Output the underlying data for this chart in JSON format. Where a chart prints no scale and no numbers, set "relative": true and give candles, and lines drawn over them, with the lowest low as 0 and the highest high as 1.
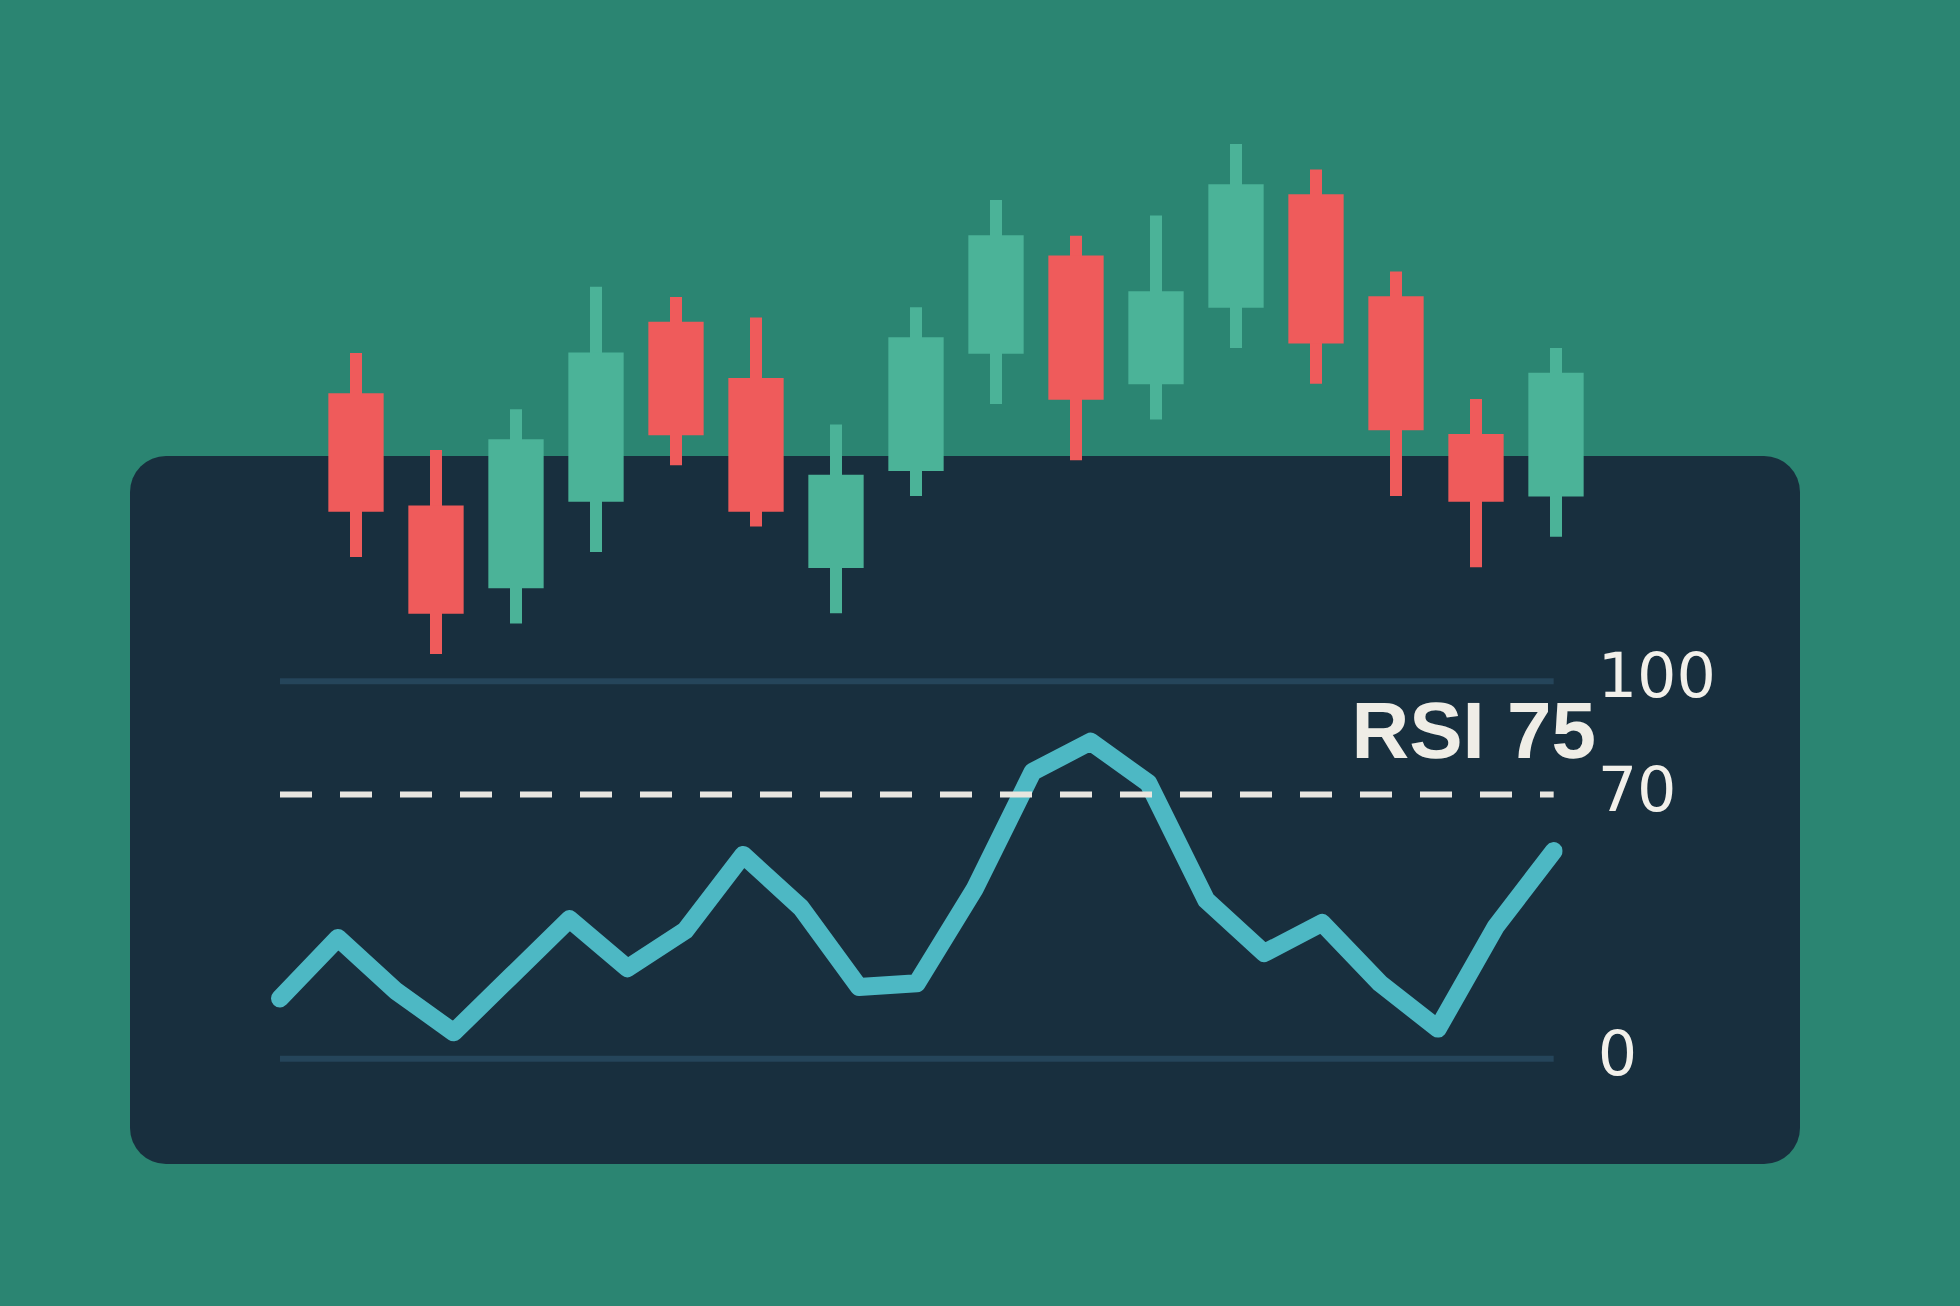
{
  "chart_data": [
    {
      "type": "candlestick",
      "relative": true,
      "categories": [
        null,
        null,
        null,
        null,
        null,
        null,
        null,
        null,
        null,
        null,
        null,
        null,
        null,
        null,
        null,
        null
      ],
      "ohlc": [
        [
          0.51,
          0.59,
          0.19,
          0.28
        ],
        [
          0.29,
          0.4,
          0,
          0.08
        ],
        [
          0.13,
          0.48,
          0.06,
          0.42
        ],
        [
          0.3,
          0.72,
          0.2,
          0.59
        ],
        [
          0.65,
          0.7,
          0.37,
          0.43
        ],
        [
          0.54,
          0.66,
          0.25,
          0.28
        ],
        [
          0.17,
          0.45,
          0.08,
          0.35
        ],
        [
          0.36,
          0.68,
          0.31,
          0.62
        ],
        [
          0.59,
          0.89,
          0.49,
          0.82
        ],
        [
          0.78,
          0.82,
          0.38,
          0.5
        ],
        [
          0.53,
          0.86,
          0.46,
          0.71
        ],
        [
          0.68,
          1,
          0.6,
          0.92
        ],
        [
          0.9,
          0.95,
          0.53,
          0.61
        ],
        [
          0.7,
          0.75,
          0.31,
          0.44
        ],
        [
          0.43,
          0.5,
          0.17,
          0.3
        ],
        [
          0.31,
          0.6,
          0.23,
          0.55
        ]
      ],
      "colors": [
        "#ef5b5b",
        "#ef5b5b",
        "#4bb398",
        "#4bb398",
        "#ef5b5b",
        "#ef5b5b",
        "#4bb398",
        "#4bb398",
        "#4bb398",
        "#ef5b5b",
        "#4bb398",
        "#4bb398",
        "#ef5b5b",
        "#ef5b5b",
        "#ef5b5b",
        "#4bb398"
      ],
      "tick_labels": false,
      "legend": false
    },
    {
      "type": "line",
      "categories": [
        null,
        null,
        null,
        null,
        null,
        null,
        null,
        null,
        null,
        null,
        null,
        null,
        null,
        null,
        null,
        null,
        null,
        null,
        null,
        null,
        null,
        null,
        null
      ],
      "values": [
        16,
        32,
        18,
        7,
        22,
        37,
        24,
        34,
        54,
        40,
        19,
        20,
        45,
        76,
        84,
        73,
        42,
        28,
        36,
        20,
        8,
        35,
        55
      ],
      "color": "#4db8c4",
      "ylim": [
        0,
        100
      ],
      "yticks": [
        0,
        70,
        100
      ],
      "grid": false,
      "tick_labels": "y",
      "marker": "none",
      "line_style": "solid",
      "ref_lines": [
        {
          "axis": "y",
          "value": 100,
          "color": "#25455a",
          "line_style": "solid"
        },
        {
          "axis": "y",
          "value": 70,
          "color": "#e8e6df",
          "line_style": "dashed"
        },
        {
          "axis": "y",
          "value": 0,
          "color": "#25455a",
          "line_style": "solid"
        }
      ],
      "annotations": [
        "RSI 75"
      ],
      "legend": false
    }
  ]
}
